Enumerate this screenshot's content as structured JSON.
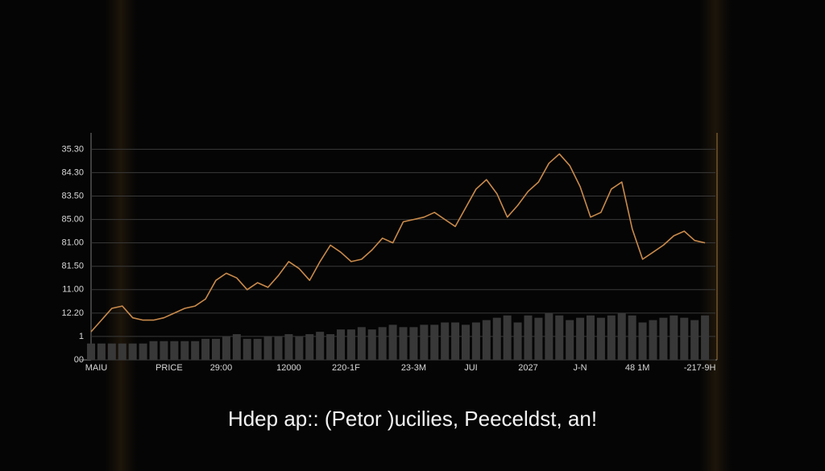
{
  "chart_data": {
    "type": "line",
    "caption": "Hdep ap::  (Petor )ucilies,  Peeceldst, an!",
    "x": [
      0,
      1,
      2,
      3,
      4,
      5,
      6,
      7,
      8,
      9,
      10,
      11,
      12,
      13,
      14,
      15,
      16,
      17,
      18,
      19,
      20,
      21,
      22,
      23,
      24,
      25,
      26,
      27,
      28,
      29,
      30,
      31,
      32,
      33,
      34,
      35,
      36,
      37,
      38,
      39,
      40,
      41,
      42,
      43,
      44,
      45,
      46,
      47,
      48,
      49,
      50,
      51,
      52,
      53,
      54,
      55,
      56,
      57,
      58,
      59
    ],
    "series": [
      {
        "color": "#c98a4b",
        "kind": "line",
        "values": [
          1.2,
          1.7,
          2.2,
          2.3,
          1.8,
          1.7,
          1.7,
          1.8,
          2.0,
          2.2,
          2.3,
          2.6,
          3.4,
          3.7,
          3.5,
          3.0,
          3.3,
          3.1,
          3.6,
          4.2,
          3.9,
          3.4,
          4.2,
          4.9,
          4.6,
          4.2,
          4.3,
          4.7,
          5.2,
          5.0,
          5.9,
          6.0,
          6.1,
          6.3,
          6.0,
          5.7,
          6.5,
          7.3,
          7.7,
          7.1,
          6.1,
          6.6,
          7.2,
          7.6,
          8.4,
          8.8,
          8.3,
          7.4,
          6.1,
          6.3,
          7.3,
          7.6,
          5.6,
          4.3,
          4.6,
          4.9,
          5.3,
          5.5,
          5.1,
          5.0
        ]
      },
      {
        "color": "#383838",
        "kind": "bar",
        "values": [
          0.7,
          0.7,
          0.7,
          0.7,
          0.7,
          0.7,
          0.8,
          0.8,
          0.8,
          0.8,
          0.8,
          0.9,
          0.9,
          1.0,
          1.1,
          0.9,
          0.9,
          1.0,
          1.0,
          1.1,
          1.0,
          1.1,
          1.2,
          1.1,
          1.3,
          1.3,
          1.4,
          1.3,
          1.4,
          1.5,
          1.4,
          1.4,
          1.5,
          1.5,
          1.6,
          1.6,
          1.5,
          1.6,
          1.7,
          1.8,
          1.9,
          1.6,
          1.9,
          1.8,
          2.0,
          1.9,
          1.7,
          1.8,
          1.9,
          1.8,
          1.9,
          2.0,
          1.9,
          1.6,
          1.7,
          1.8,
          1.9,
          1.8,
          1.7,
          1.9
        ]
      }
    ],
    "xlim": [
      0,
      60
    ],
    "xticks": [
      {
        "value": 0.5,
        "label": "MAIU"
      },
      {
        "value": 7.5,
        "label": "PRICE"
      },
      {
        "value": 12.5,
        "label": "29:00"
      },
      {
        "value": 19,
        "label": "12000"
      },
      {
        "value": 24.5,
        "label": "220-1F"
      },
      {
        "value": 31,
        "label": "23-3M"
      },
      {
        "value": 36.5,
        "label": "JUI"
      },
      {
        "value": 42,
        "label": "2027"
      },
      {
        "value": 47,
        "label": "J-N"
      },
      {
        "value": 52.5,
        "label": "48 1M"
      },
      {
        "value": 58.5,
        "label": "-217-9H"
      }
    ],
    "ylim": [
      0,
      9.7
    ],
    "yticks": [
      {
        "value": 0,
        "label": "00"
      },
      1,
      {
        "value": 2,
        "label": "12.20"
      },
      {
        "value": 3,
        "label": "11.00"
      },
      {
        "value": 4,
        "label": "81.50"
      },
      {
        "value": 5,
        "label": "81.00"
      },
      {
        "value": 6,
        "label": "85.00"
      },
      {
        "value": 7,
        "label": "83.50"
      },
      {
        "value": 8,
        "label": "84.30"
      },
      {
        "value": 9,
        "label": "35.30"
      }
    ],
    "grid": true
  }
}
